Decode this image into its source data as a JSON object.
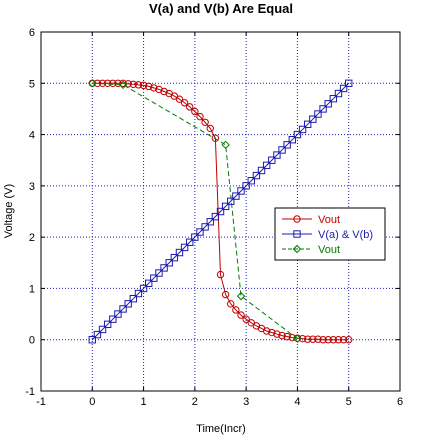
{
  "chart_data": {
    "type": "line",
    "title": "V(a) and V(b) Are Equal",
    "xlabel": "Time(Incr)",
    "ylabel": "Voltage (V)",
    "xlim": [
      -1,
      6
    ],
    "ylim": [
      -1,
      6
    ],
    "xticks": [
      "-1",
      "0",
      "1",
      "2",
      "3",
      "4",
      "5",
      "6"
    ],
    "yticks": [
      "-1",
      "0",
      "1",
      "2",
      "3",
      "4",
      "5",
      "6"
    ],
    "grid": true,
    "legend_position": "right",
    "series": [
      {
        "name": "Vout",
        "color": "#c00000",
        "marker": "circle",
        "line": "solid",
        "x": [
          0.0,
          0.1,
          0.2,
          0.3,
          0.4,
          0.5,
          0.6,
          0.7,
          0.8,
          0.9,
          1.0,
          1.1,
          1.2,
          1.3,
          1.4,
          1.5,
          1.6,
          1.7,
          1.8,
          1.9,
          2.0,
          2.1,
          2.2,
          2.3,
          2.4,
          2.5,
          2.6,
          2.7,
          2.8,
          2.9,
          3.0,
          3.1,
          3.2,
          3.3,
          3.4,
          3.5,
          3.6,
          3.7,
          3.8,
          3.9,
          4.0,
          4.1,
          4.2,
          4.3,
          4.4,
          4.5,
          4.6,
          4.7,
          4.8,
          4.9,
          5.0
        ],
        "y": [
          5.0,
          5.0,
          5.0,
          5.0,
          5.0,
          5.0,
          5.0,
          4.99,
          4.98,
          4.97,
          4.96,
          4.94,
          4.91,
          4.88,
          4.84,
          4.8,
          4.75,
          4.69,
          4.62,
          4.54,
          4.45,
          4.35,
          4.24,
          4.12,
          3.93,
          1.27,
          0.88,
          0.7,
          0.58,
          0.48,
          0.4,
          0.33,
          0.27,
          0.22,
          0.17,
          0.14,
          0.11,
          0.08,
          0.06,
          0.04,
          0.03,
          0.02,
          0.01,
          0.01,
          0.01,
          0.0,
          0.0,
          0.0,
          0.0,
          0.0,
          0.0
        ]
      },
      {
        "name": "V(a) & V(b)",
        "color": "#1c1cb0",
        "marker": "square",
        "line": "solid",
        "x": [
          0.0,
          0.1,
          0.2,
          0.3,
          0.4,
          0.5,
          0.6,
          0.7,
          0.8,
          0.9,
          1.0,
          1.1,
          1.2,
          1.3,
          1.4,
          1.5,
          1.6,
          1.7,
          1.8,
          1.9,
          2.0,
          2.1,
          2.2,
          2.3,
          2.4,
          2.5,
          2.6,
          2.7,
          2.8,
          2.9,
          3.0,
          3.1,
          3.2,
          3.3,
          3.4,
          3.5,
          3.6,
          3.7,
          3.8,
          3.9,
          4.0,
          4.1,
          4.2,
          4.3,
          4.4,
          4.5,
          4.6,
          4.7,
          4.8,
          4.9,
          5.0
        ],
        "y": [
          0.0,
          0.1,
          0.2,
          0.3,
          0.4,
          0.5,
          0.6,
          0.7,
          0.8,
          0.9,
          1.0,
          1.1,
          1.2,
          1.3,
          1.4,
          1.5,
          1.6,
          1.7,
          1.8,
          1.9,
          2.0,
          2.1,
          2.2,
          2.3,
          2.4,
          2.5,
          2.6,
          2.7,
          2.8,
          2.9,
          3.0,
          3.1,
          3.2,
          3.3,
          3.4,
          3.5,
          3.6,
          3.7,
          3.8,
          3.9,
          4.0,
          4.1,
          4.2,
          4.3,
          4.4,
          4.5,
          4.6,
          4.7,
          4.8,
          4.9,
          5.0
        ]
      },
      {
        "name": "Vout",
        "color": "#007a00",
        "marker": "diamond",
        "line": "dashed",
        "x": [
          0.0,
          0.6,
          2.6,
          2.9,
          4.0
        ],
        "y": [
          5.0,
          4.97,
          3.8,
          0.85,
          0.02
        ]
      }
    ]
  }
}
